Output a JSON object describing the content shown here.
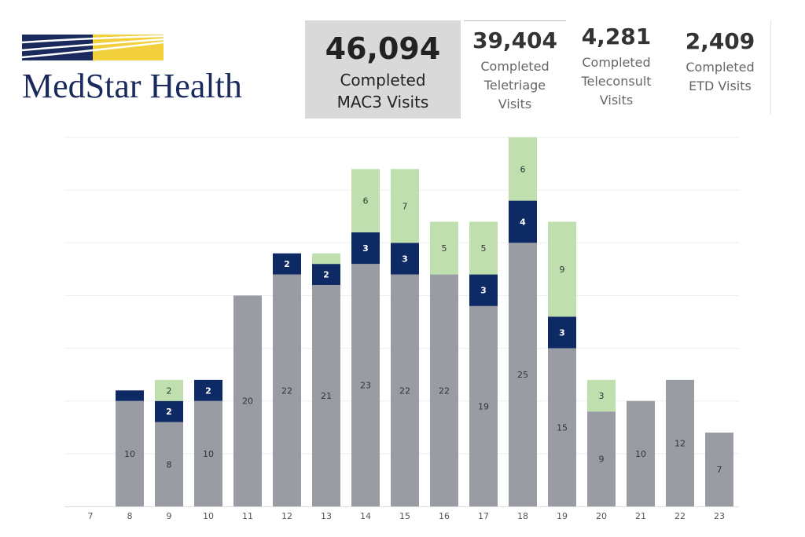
{
  "header": {
    "logo_text": "MedStar Health",
    "colors": {
      "navy": "#1b2a5c",
      "gold": "#f2d03b"
    }
  },
  "kpis": {
    "main": {
      "value": "46,094",
      "label": "Completed\nMAC3 Visits"
    },
    "tele": {
      "value": "39,404",
      "label": "Completed\nTeletriage\nVisits"
    },
    "cons": {
      "value": "4,281",
      "label": "Completed\nTeleconsult\nVisits"
    },
    "etd": {
      "value": "2,409",
      "label": "Completed\nETD Visits"
    }
  },
  "chart_data": {
    "type": "bar",
    "stacked": true,
    "categories": [
      "7",
      "8",
      "9",
      "10",
      "11",
      "12",
      "13",
      "14",
      "15",
      "16",
      "17",
      "18",
      "19",
      "20",
      "21",
      "22",
      "23"
    ],
    "series": [
      {
        "color": "#9a9ca3",
        "values": [
          0,
          10,
          8,
          10,
          20,
          22,
          21,
          23,
          22,
          22,
          19,
          25,
          15,
          9,
          10,
          12,
          7
        ],
        "labels": [
          "",
          "10",
          "8",
          "10",
          "20",
          "22",
          "21",
          "23",
          "22",
          "22",
          "19",
          "25",
          "15",
          "9",
          "10",
          "12",
          "7"
        ]
      },
      {
        "color": "#0e2a64",
        "values": [
          0,
          1,
          2,
          2,
          0,
          2,
          2,
          3,
          3,
          0,
          3,
          4,
          3,
          0,
          0,
          0,
          0
        ],
        "labels": [
          "",
          "",
          "2",
          "2",
          "",
          "2",
          "2",
          "3",
          "3",
          "",
          "3",
          "4",
          "3",
          "",
          "",
          "",
          ""
        ]
      },
      {
        "color": "#bfe0ae",
        "values": [
          0,
          0,
          2,
          0,
          0,
          0,
          1,
          6,
          7,
          5,
          5,
          6,
          9,
          3,
          0,
          0,
          0
        ],
        "labels": [
          "",
          "",
          "2",
          "",
          "",
          "",
          "",
          "6",
          "7",
          "5",
          "5",
          "6",
          "9",
          "3",
          "",
          "",
          ""
        ]
      }
    ],
    "ylim": [
      0,
      35
    ],
    "grid": true
  }
}
